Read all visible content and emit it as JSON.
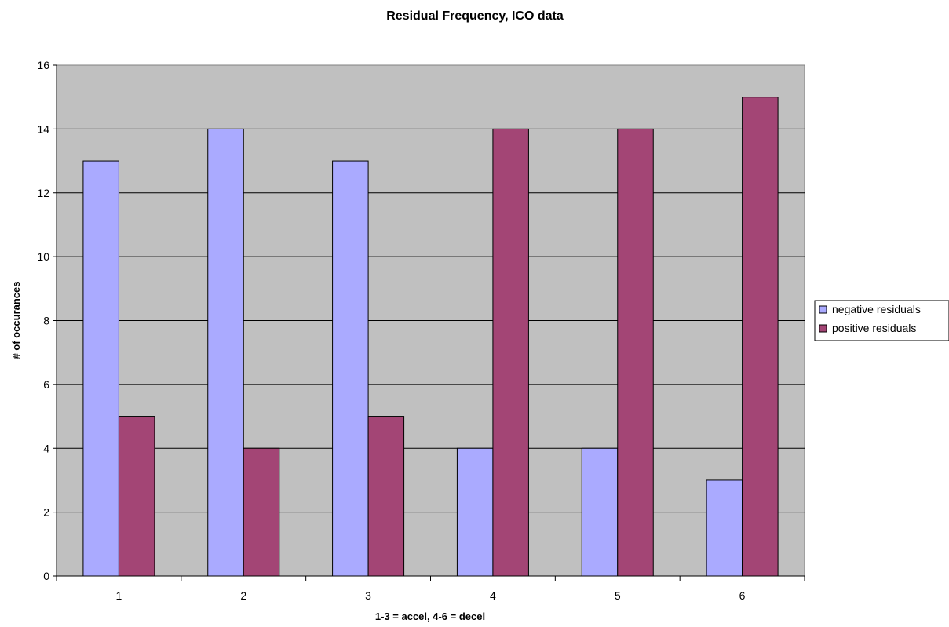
{
  "chart_data": {
    "type": "bar",
    "title": "Residual Frequency, ICO data",
    "xlabel": "1-3 = accel, 4-6 = decel",
    "ylabel": "# of occurances",
    "categories": [
      "1",
      "2",
      "3",
      "4",
      "5",
      "6"
    ],
    "series": [
      {
        "name": "negative residuals",
        "values": [
          13,
          14,
          13,
          4,
          4,
          3
        ],
        "color": "#aaaaff"
      },
      {
        "name": "positive residuals",
        "values": [
          5,
          4,
          5,
          14,
          14,
          15
        ],
        "color": "#a34575"
      }
    ],
    "ylim": [
      0,
      16
    ],
    "yticks": [
      0,
      2,
      4,
      6,
      8,
      10,
      12,
      14,
      16
    ],
    "grid": true,
    "legend_position": "right",
    "plot_background": "#c0c0c0"
  }
}
